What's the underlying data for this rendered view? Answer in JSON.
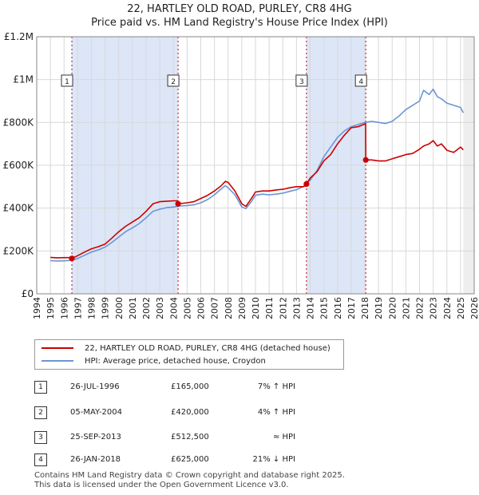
{
  "title_line1": "22, HARTLEY OLD ROAD, PURLEY, CR8 4HG",
  "title_line2": "Price paid vs. HM Land Registry's House Price Index (HPI)",
  "legend": {
    "property": "22, HARTLEY OLD ROAD, PURLEY, CR8 4HG (detached house)",
    "hpi": "HPI: Average price, detached house, Croydon"
  },
  "colors": {
    "property": "#cc0000",
    "hpi": "#6b95d4",
    "shade": "#dce6f7",
    "grid": "#d8d8d8"
  },
  "sales": [
    {
      "num": "1",
      "date": "26-JUL-1996",
      "price": "£165,000",
      "hpi": "7% ↑ HPI"
    },
    {
      "num": "2",
      "date": "05-MAY-2004",
      "price": "£420,000",
      "hpi": "4% ↑ HPI"
    },
    {
      "num": "3",
      "date": "25-SEP-2013",
      "price": "£512,500",
      "hpi": "≈ HPI"
    },
    {
      "num": "4",
      "date": "26-JAN-2018",
      "price": "£625,000",
      "hpi": "21% ↓ HPI"
    }
  ],
  "footer": {
    "line1": "Contains HM Land Registry data © Crown copyright and database right 2025.",
    "line2": "This data is licensed under the Open Government Licence v3.0."
  },
  "chart_data": {
    "type": "line",
    "title": "22, HARTLEY OLD ROAD, PURLEY, CR8 4HG — Price paid vs. HM Land Registry's House Price Index (HPI)",
    "xlabel": "",
    "ylabel": "",
    "xlim": [
      1994,
      2026
    ],
    "ylim": [
      0,
      1200000
    ],
    "x_ticks": [
      1994,
      1995,
      1996,
      1997,
      1998,
      1999,
      2000,
      2001,
      2002,
      2003,
      2004,
      2005,
      2006,
      2007,
      2008,
      2009,
      2010,
      2011,
      2012,
      2013,
      2014,
      2015,
      2016,
      2017,
      2018,
      2019,
      2020,
      2021,
      2022,
      2023,
      2024,
      2025,
      2026
    ],
    "y_ticks": [
      {
        "value": 0,
        "label": "£0"
      },
      {
        "value": 200000,
        "label": "£200K"
      },
      {
        "value": 400000,
        "label": "£400K"
      },
      {
        "value": 600000,
        "label": "£600K"
      },
      {
        "value": 800000,
        "label": "£800K"
      },
      {
        "value": 1000000,
        "label": "£1M"
      },
      {
        "value": 1200000,
        "label": "£1.2M"
      }
    ],
    "shaded_ranges": [
      [
        1996.57,
        2004.34
      ],
      [
        2013.73,
        2018.07
      ]
    ],
    "sale_markers": [
      {
        "label": "1",
        "x": 1996.57,
        "y": 165000
      },
      {
        "label": "2",
        "x": 2004.34,
        "y": 420000
      },
      {
        "label": "3",
        "x": 2013.73,
        "y": 512500
      },
      {
        "label": "4",
        "x": 2018.07,
        "y": 625000
      }
    ],
    "series": [
      {
        "name": "22, HARTLEY OLD ROAD, PURLEY, CR8 4HG (detached house)",
        "x": [
          1995.0,
          1995.5,
          1996.0,
          1996.56,
          1996.57,
          1997.0,
          1997.5,
          1998.0,
          1998.5,
          1999.0,
          1999.5,
          2000.0,
          2000.5,
          2001.0,
          2001.5,
          2002.0,
          2002.5,
          2003.0,
          2003.5,
          2004.0,
          2004.33,
          2004.34,
          2005.0,
          2005.5,
          2006.0,
          2006.5,
          2007.0,
          2007.5,
          2007.8,
          2008.0,
          2008.5,
          2009.0,
          2009.3,
          2009.7,
          2010.0,
          2010.5,
          2011.0,
          2011.5,
          2012.0,
          2012.5,
          2013.0,
          2013.5,
          2013.72,
          2013.73,
          2014.0,
          2014.5,
          2015.0,
          2015.5,
          2016.0,
          2016.5,
          2017.0,
          2017.5,
          2017.9,
          2018.06,
          2018.07,
          2018.5,
          2019.0,
          2019.5,
          2020.0,
          2020.5,
          2021.0,
          2021.5,
          2022.0,
          2022.3,
          2022.7,
          2023.0,
          2023.3,
          2023.6,
          2024.0,
          2024.5,
          2025.0,
          2025.2
        ],
        "values": [
          170000,
          168000,
          169000,
          169000,
          165000,
          178000,
          195000,
          210000,
          220000,
          232000,
          260000,
          290000,
          315000,
          335000,
          355000,
          385000,
          420000,
          430000,
          432000,
          434000,
          434000,
          420000,
          425000,
          430000,
          445000,
          460000,
          480000,
          505000,
          525000,
          520000,
          480000,
          420000,
          408000,
          445000,
          475000,
          480000,
          480000,
          485000,
          488000,
          495000,
          500000,
          500000,
          505000,
          512500,
          540000,
          570000,
          620000,
          650000,
          700000,
          740000,
          775000,
          780000,
          790000,
          795000,
          625000,
          625000,
          620000,
          620000,
          630000,
          640000,
          650000,
          655000,
          675000,
          690000,
          700000,
          715000,
          690000,
          700000,
          670000,
          660000,
          685000,
          672000
        ]
      },
      {
        "name": "HPI: Average price, detached house, Croydon",
        "x": [
          1995.0,
          1995.5,
          1996.0,
          1996.5,
          1997.0,
          1997.5,
          1998.0,
          1998.5,
          1999.0,
          1999.5,
          2000.0,
          2000.5,
          2001.0,
          2001.5,
          2002.0,
          2002.5,
          2003.0,
          2003.5,
          2004.0,
          2004.5,
          2005.0,
          2005.5,
          2006.0,
          2006.5,
          2007.0,
          2007.5,
          2007.8,
          2008.0,
          2008.5,
          2009.0,
          2009.3,
          2009.7,
          2010.0,
          2010.5,
          2011.0,
          2011.5,
          2012.0,
          2012.5,
          2013.0,
          2013.5,
          2014.0,
          2014.5,
          2015.0,
          2015.5,
          2016.0,
          2016.5,
          2017.0,
          2017.5,
          2018.0,
          2018.5,
          2019.0,
          2019.5,
          2020.0,
          2020.5,
          2021.0,
          2021.5,
          2022.0,
          2022.3,
          2022.7,
          2023.0,
          2023.3,
          2023.6,
          2024.0,
          2024.5,
          2025.0,
          2025.2
        ],
        "values": [
          155000,
          153000,
          154000,
          156000,
          165000,
          180000,
          195000,
          205000,
          218000,
          240000,
          265000,
          290000,
          308000,
          328000,
          355000,
          385000,
          395000,
          402000,
          405000,
          410000,
          412000,
          415000,
          425000,
          440000,
          462000,
          490000,
          505000,
          495000,
          462000,
          405000,
          398000,
          430000,
          460000,
          465000,
          462000,
          465000,
          470000,
          478000,
          486000,
          500000,
          530000,
          575000,
          640000,
          685000,
          730000,
          760000,
          780000,
          790000,
          800000,
          805000,
          800000,
          795000,
          805000,
          830000,
          860000,
          880000,
          900000,
          950000,
          930000,
          955000,
          920000,
          910000,
          890000,
          880000,
          870000,
          845000
        ]
      }
    ]
  }
}
